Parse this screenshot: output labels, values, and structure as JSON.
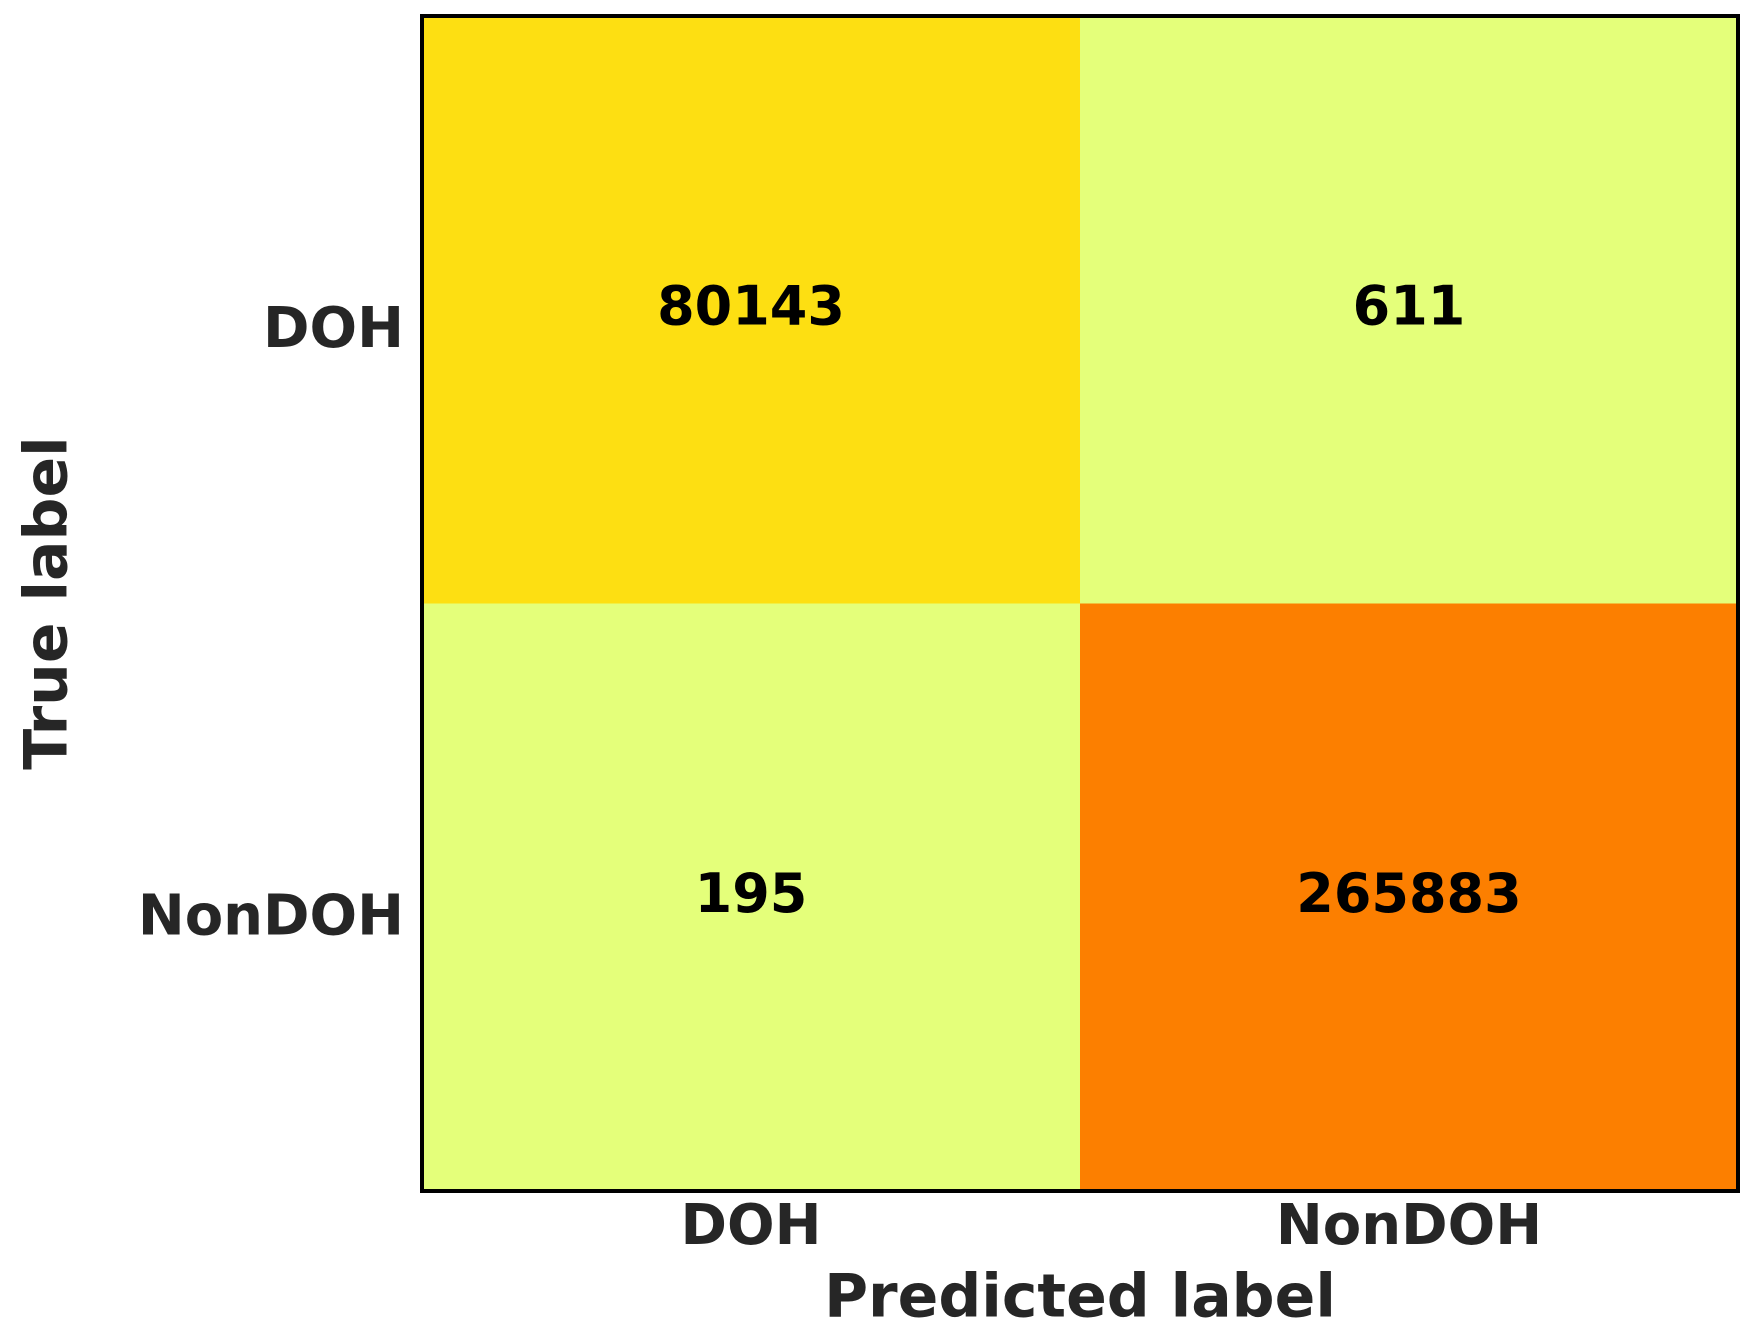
{
  "chart_data": {
    "type": "heatmap",
    "x_label": "Predicted label",
    "y_label": "True label",
    "x_categories": [
      "DOH",
      "NonDOH"
    ],
    "y_categories": [
      "DOH",
      "NonDOH"
    ],
    "values": [
      [
        80143,
        611
      ],
      [
        195,
        265883
      ]
    ],
    "cell_colors": [
      [
        "#fddf12",
        "#e4ff7a"
      ],
      [
        "#e4ff7a",
        "#fc7f00"
      ]
    ]
  }
}
